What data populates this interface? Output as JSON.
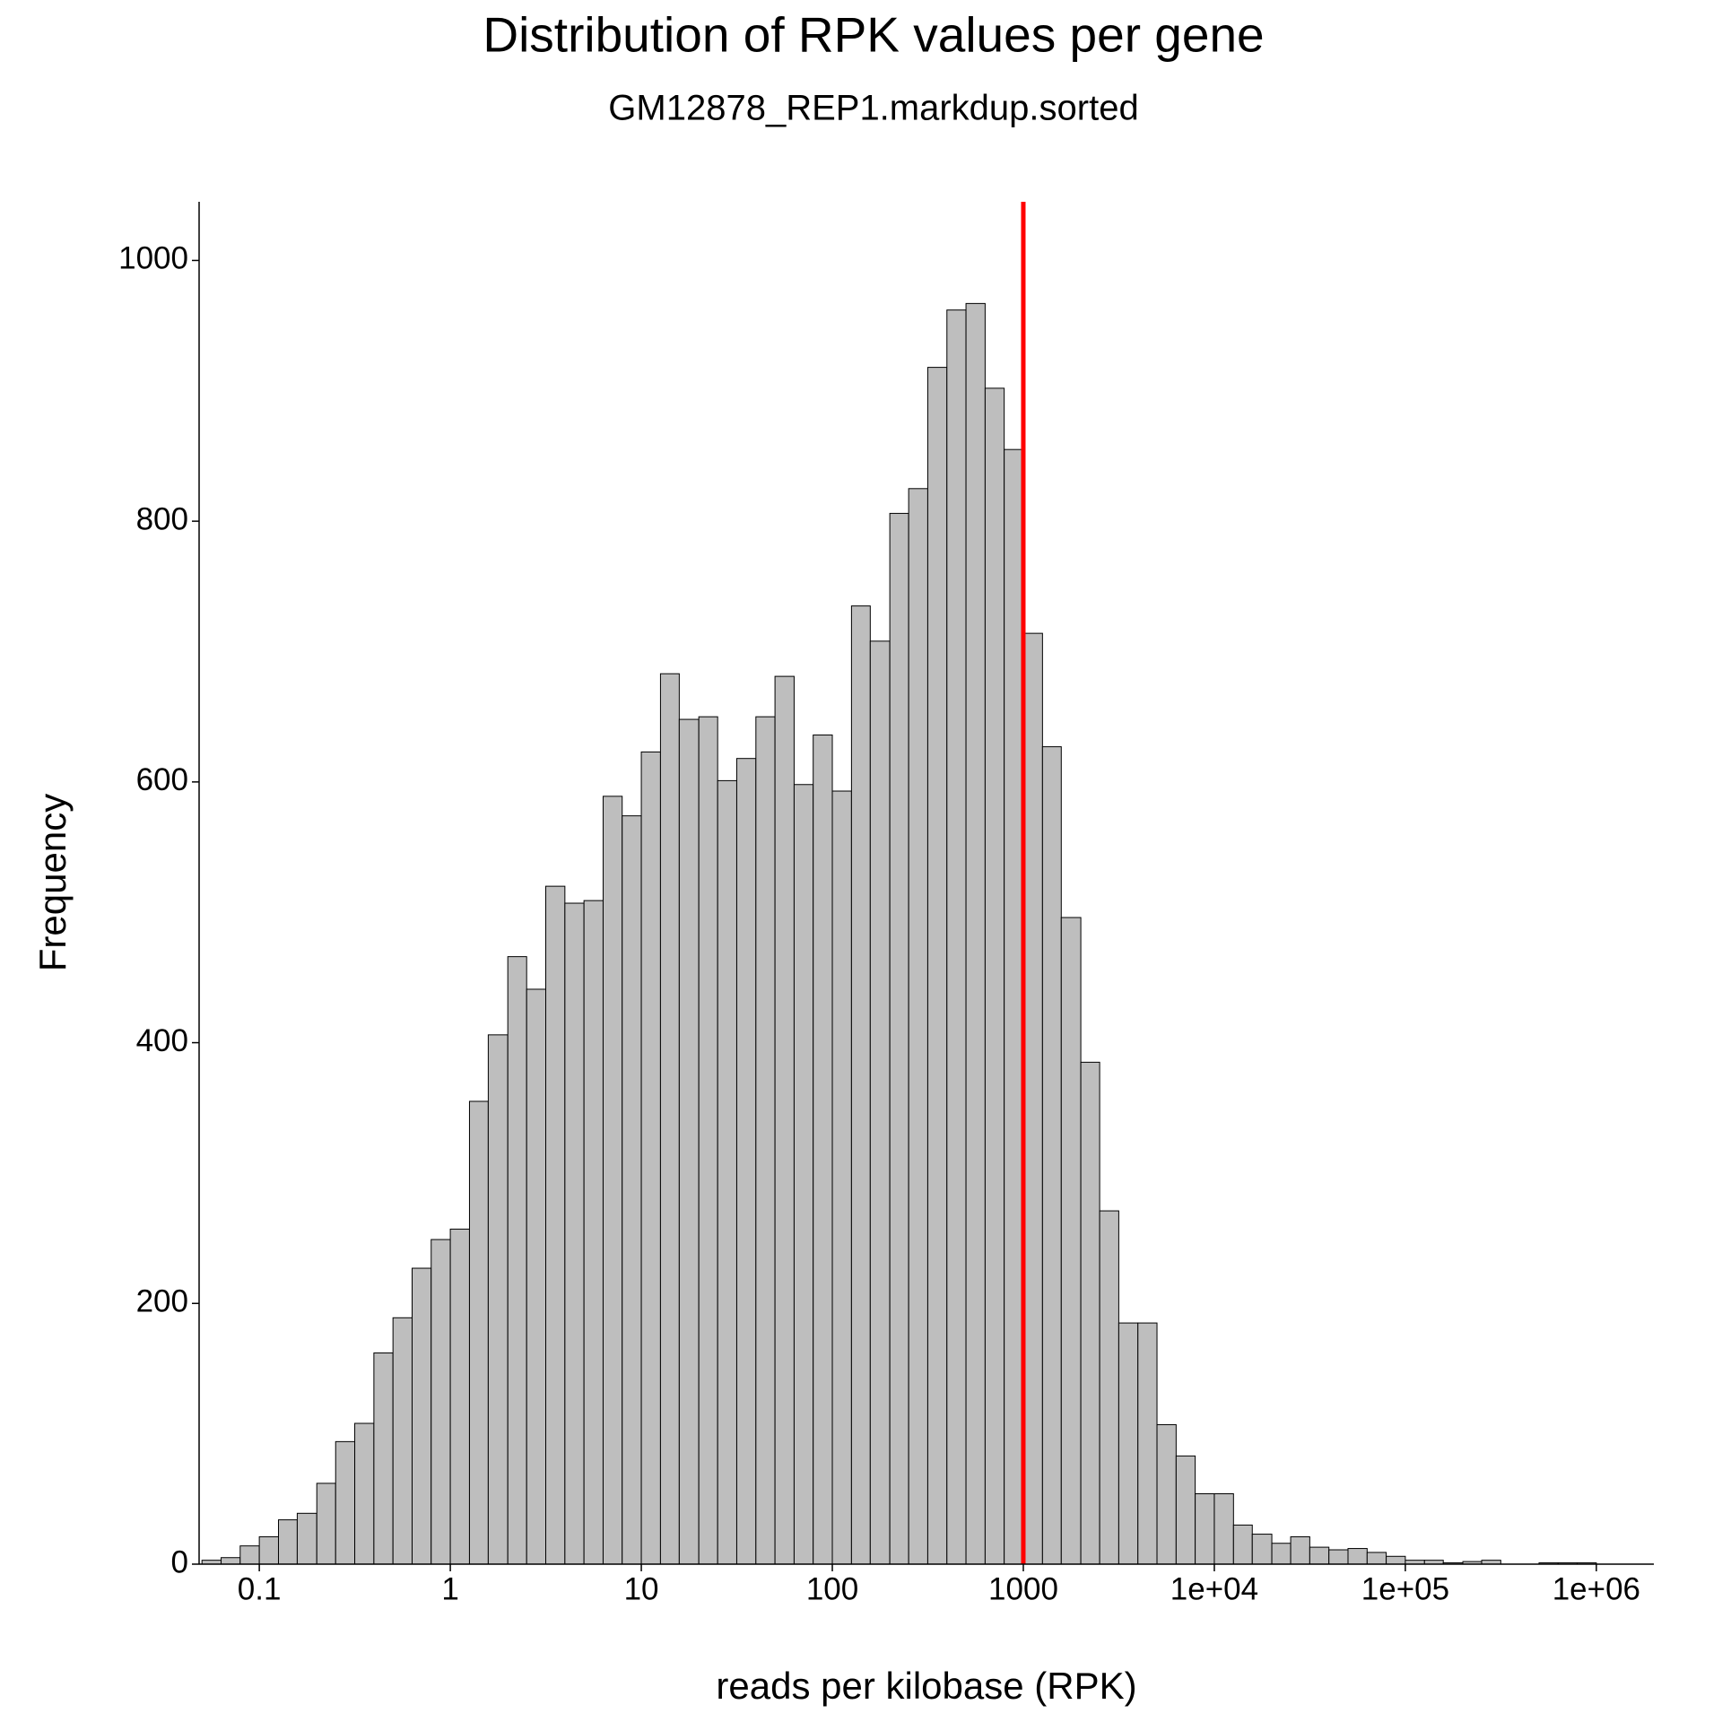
{
  "chart_data": {
    "type": "histogram",
    "title": "Distribution of RPK values per gene",
    "subtitle": "GM12878_REP1.markdup.sorted",
    "xlabel": "reads per kilobase (RPK)",
    "ylabel": "Frequency",
    "xscale": "log",
    "color": "#bebebe",
    "edgecolor": "#000000",
    "bins": [
      0.0501,
      0.0631,
      0.0794,
      0.1,
      0.126,
      0.158,
      0.2,
      0.251,
      0.316,
      0.398,
      0.501,
      0.631,
      0.794,
      1,
      1.26,
      1.58,
      2,
      2.51,
      3.16,
      3.98,
      5.01,
      6.31,
      7.94,
      10,
      12.6,
      15.8,
      20,
      25.1,
      31.6,
      39.8,
      50.1,
      63.1,
      79.4,
      100,
      126,
      158,
      200,
      251,
      316,
      398,
      501,
      631,
      794,
      1000,
      1260,
      1580,
      2000,
      2510,
      3160,
      3980,
      5010,
      6310,
      7940,
      10000,
      12600,
      15800,
      20000,
      25100,
      31600,
      39800,
      50100,
      63100,
      79400,
      100000,
      126000,
      158000,
      200000,
      251000,
      316000,
      398000,
      501000,
      631000,
      794000,
      1000000
    ],
    "values": [
      3,
      5,
      14,
      21,
      34,
      39,
      62,
      94,
      108,
      162,
      189,
      227,
      249,
      257,
      355,
      406,
      466,
      441,
      520,
      507,
      509,
      589,
      574,
      623,
      683,
      648,
      650,
      601,
      618,
      650,
      681,
      598,
      636,
      593,
      735,
      708,
      806,
      825,
      918,
      962,
      967,
      902,
      855,
      714,
      627,
      496,
      385,
      271,
      185,
      185,
      107,
      83,
      54,
      54,
      30,
      23,
      16,
      21,
      13,
      11,
      12,
      9,
      6,
      3,
      3,
      1,
      2,
      3,
      0,
      0,
      1,
      1,
      1
    ],
    "vline": 1000,
    "vline_color": "#ff0000",
    "xlim": [
      0.0484,
      2000000
    ],
    "xticks": [
      0.1,
      1,
      10,
      100,
      1000,
      {
        "value": 10000,
        "label": "1e+04"
      },
      {
        "value": 100000,
        "label": "1e+05"
      },
      {
        "value": 1000000,
        "label": "1e+06"
      }
    ],
    "ylim": [
      0,
      1045
    ],
    "yticks": [
      0,
      200,
      400,
      600,
      800,
      1000
    ]
  }
}
